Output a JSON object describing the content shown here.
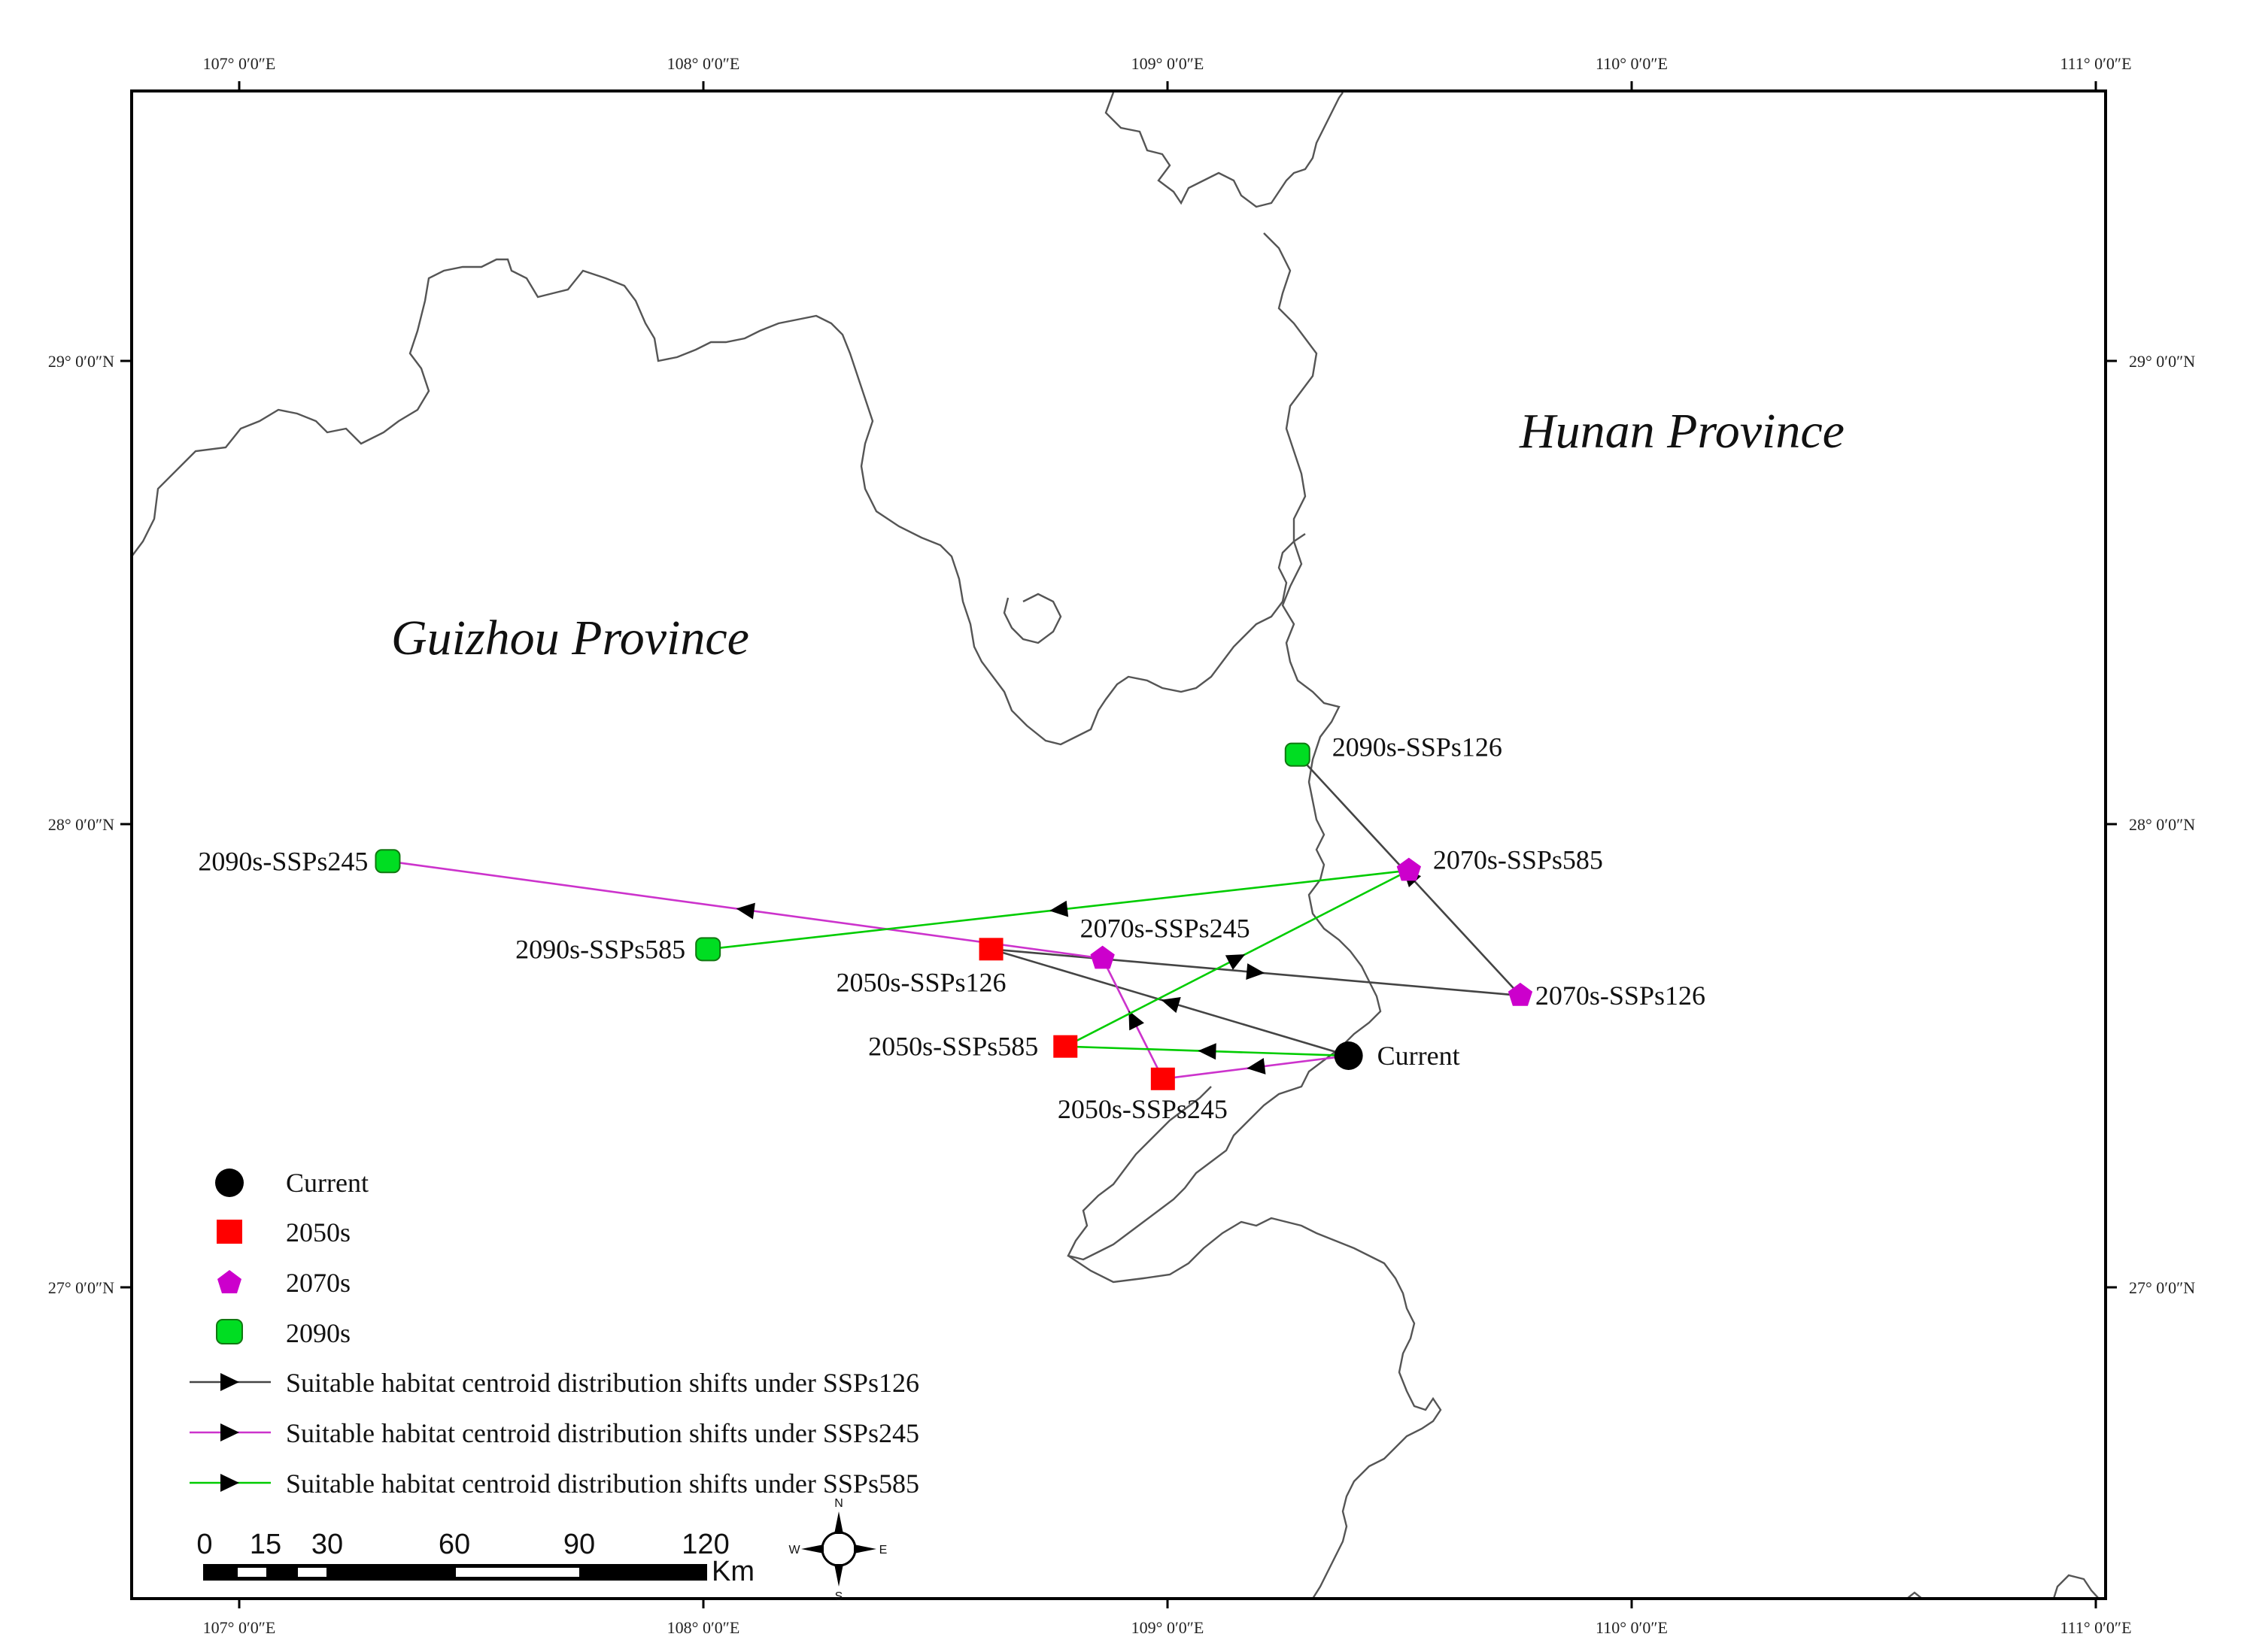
{
  "map": {
    "provinces": [
      {
        "name": "Guizhou Province"
      },
      {
        "name": "Hunan Province"
      }
    ],
    "axis_labels": {
      "top": [
        "107° 0′0″E",
        "108° 0′0″E",
        "109° 0′0″E",
        "110° 0′0″E",
        "111° 0′0″E"
      ],
      "bottom": [
        "107° 0′0″E",
        "108° 0′0″E",
        "109° 0′0″E",
        "110° 0′0″E",
        "111° 0′0″E"
      ],
      "left": [
        "29° 0′0″N",
        "28° 0′0″N",
        "27° 0′0″N"
      ],
      "right": [
        "29° 0′0″N",
        "28° 0′0″N",
        "27° 0′0″N"
      ]
    },
    "colors": {
      "current": "#000000",
      "2050s": "#ff0000",
      "2070s": "#cc00cc",
      "2090s": "#00dd22",
      "ssp126": "#444444",
      "ssp245": "#cc33cc",
      "ssp585": "#00cc00",
      "boundary": "#555555"
    },
    "points": [
      {
        "id": "current",
        "label": "Current",
        "period": "current",
        "lon": 109.39,
        "lat": 27.5
      },
      {
        "id": "2050s-126",
        "label": "2050s-SSPs126",
        "period": "2050s",
        "lon": 108.62,
        "lat": 27.73
      },
      {
        "id": "2050s-245",
        "label": "2050s-SSPs245",
        "period": "2050s",
        "lon": 108.99,
        "lat": 27.45
      },
      {
        "id": "2050s-585",
        "label": "2050s-SSPs585",
        "period": "2050s",
        "lon": 108.78,
        "lat": 27.52
      },
      {
        "id": "2070s-126",
        "label": "2070s-SSPs126",
        "period": "2070s",
        "lon": 109.76,
        "lat": 27.63
      },
      {
        "id": "2070s-245",
        "label": "2070s-SSPs245",
        "period": "2070s",
        "lon": 108.86,
        "lat": 27.71
      },
      {
        "id": "2070s-585",
        "label": "2070s-SSPs585",
        "period": "2070s",
        "lon": 109.52,
        "lat": 27.9
      },
      {
        "id": "2090s-126",
        "label": "2090s-SSPs126",
        "period": "2090s",
        "lon": 109.28,
        "lat": 28.15
      },
      {
        "id": "2090s-245",
        "label": "2090s-SSPs245",
        "period": "2090s",
        "lon": 107.32,
        "lat": 27.92
      },
      {
        "id": "2090s-585",
        "label": "2090s-SSPs585",
        "period": "2090s",
        "lon": 108.01,
        "lat": 27.73
      }
    ],
    "paths": [
      {
        "scenario": "SSPs126",
        "sequence": [
          "current",
          "2050s-126",
          "2070s-126",
          "2090s-126"
        ]
      },
      {
        "scenario": "SSPs245",
        "sequence": [
          "current",
          "2050s-245",
          "2070s-245",
          "2090s-245"
        ]
      },
      {
        "scenario": "SSPs585",
        "sequence": [
          "current",
          "2050s-585",
          "2070s-585",
          "2090s-585"
        ]
      }
    ]
  },
  "legend": {
    "items": [
      {
        "symbol": "circle",
        "label": "Current"
      },
      {
        "symbol": "square",
        "label": "2050s"
      },
      {
        "symbol": "pentagon",
        "label": "2070s"
      },
      {
        "symbol": "rounded-square",
        "label": "2090s"
      },
      {
        "symbol": "line-arrow",
        "label": "Suitable habitat centroid distribution shifts under SSPs126"
      },
      {
        "symbol": "line-arrow",
        "label": "Suitable habitat centroid distribution shifts under SSPs245"
      },
      {
        "symbol": "line-arrow",
        "label": "Suitable habitat centroid distribution shifts under SSPs585"
      }
    ]
  },
  "scale_bar": {
    "ticks": [
      "0",
      "15",
      "30",
      "60",
      "90",
      "120"
    ],
    "values": [
      0,
      15,
      30,
      60,
      90,
      120
    ],
    "unit": "Km"
  },
  "compass": {
    "n": "N",
    "s": "S",
    "e": "E",
    "w": "W"
  }
}
